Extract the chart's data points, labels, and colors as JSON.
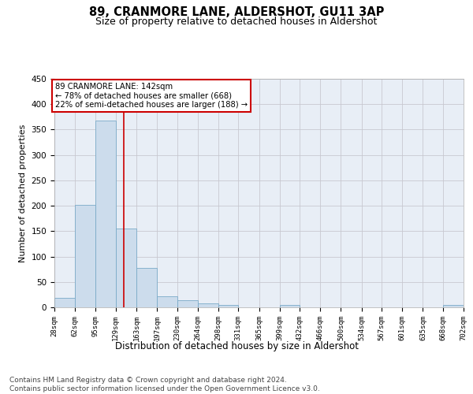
{
  "title": "89, CRANMORE LANE, ALDERSHOT, GU11 3AP",
  "subtitle": "Size of property relative to detached houses in Aldershot",
  "xlabel": "Distribution of detached houses by size in Aldershot",
  "ylabel": "Number of detached properties",
  "bar_color": "#ccdcec",
  "bar_edge_color": "#7aaac8",
  "grid_color": "#c8c8d0",
  "background_color": "#e8eef6",
  "vline_color": "#cc0000",
  "vline_value": 142,
  "annotation_text": "89 CRANMORE LANE: 142sqm\n← 78% of detached houses are smaller (668)\n22% of semi-detached houses are larger (188) →",
  "annotation_box_color": "#ffffff",
  "annotation_border_color": "#cc0000",
  "bins": [
    28,
    62,
    95,
    129,
    163,
    197,
    230,
    264,
    298,
    331,
    365,
    399,
    432,
    466,
    500,
    534,
    567,
    601,
    635,
    668,
    702
  ],
  "counts": [
    18,
    202,
    368,
    155,
    78,
    22,
    14,
    8,
    5,
    0,
    0,
    5,
    0,
    0,
    0,
    0,
    0,
    0,
    0,
    5
  ],
  "ylim": [
    0,
    450
  ],
  "yticks": [
    0,
    50,
    100,
    150,
    200,
    250,
    300,
    350,
    400,
    450
  ],
  "footnote": "Contains HM Land Registry data © Crown copyright and database right 2024.\nContains public sector information licensed under the Open Government Licence v3.0.",
  "footnote_fontsize": 6.5,
  "title_fontsize": 10.5,
  "subtitle_fontsize": 9,
  "xlabel_fontsize": 8.5,
  "ylabel_fontsize": 8
}
